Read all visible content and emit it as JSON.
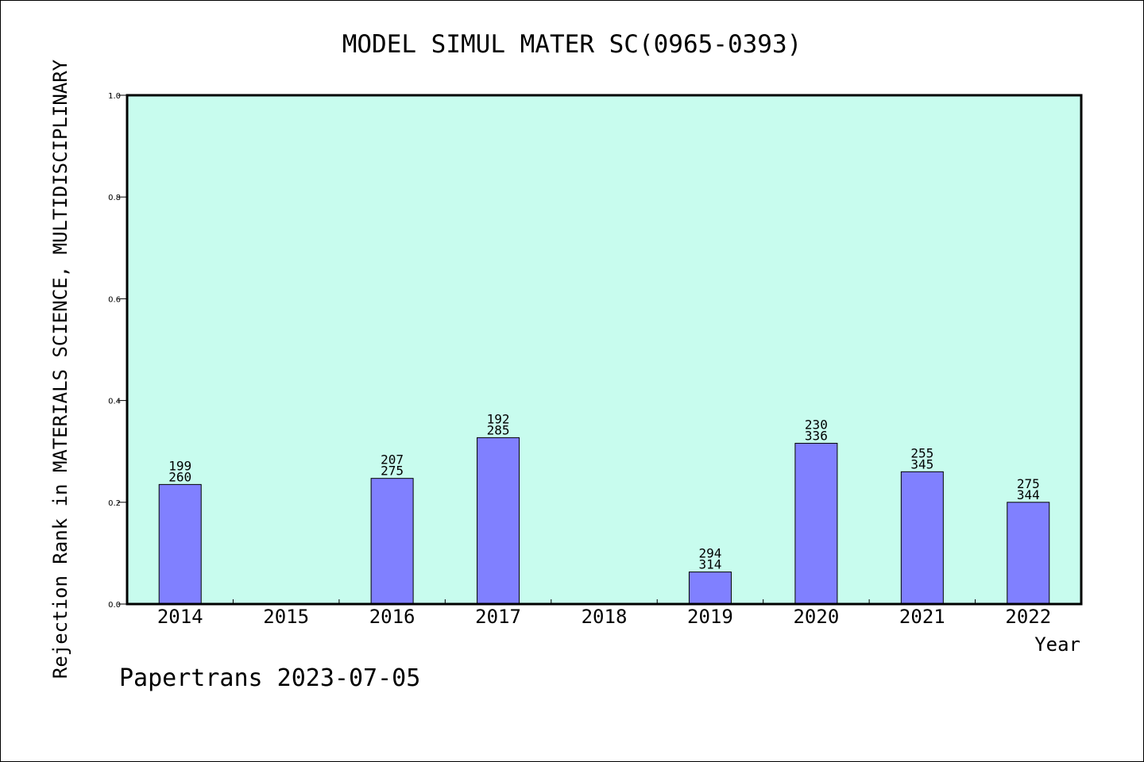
{
  "chart_data": {
    "type": "bar",
    "title": "MODEL SIMUL MATER SC(0965-0393)",
    "ylabel": "Rejection Rank in MATERIALS SCIENCE, MULTIDISCIPLINARY",
    "xlabel": "Year",
    "ylim": [
      0,
      1.0
    ],
    "yticks": [
      "0.0",
      "0.2",
      "0.4",
      "0.6",
      "0.8",
      "1.0"
    ],
    "categories": [
      "2014",
      "2015",
      "2016",
      "2017",
      "2018",
      "2019",
      "2020",
      "2021",
      "2022"
    ],
    "values": [
      0.235,
      null,
      0.247,
      0.327,
      null,
      0.063,
      0.316,
      0.26,
      0.2
    ],
    "labels": [
      [
        "199",
        "260"
      ],
      null,
      [
        "207",
        "275"
      ],
      [
        "192",
        "285"
      ],
      null,
      [
        "294",
        "314"
      ],
      [
        "230",
        "336"
      ],
      [
        "255",
        "345"
      ],
      [
        "275",
        "344"
      ]
    ],
    "grid": false,
    "colors": {
      "plot_background": "#c8fcee",
      "bar_fill": "#8080ff",
      "bar_stroke": "#000000",
      "axis": "#000000"
    }
  },
  "footer": {
    "text": "Papertrans 2023-07-05"
  }
}
